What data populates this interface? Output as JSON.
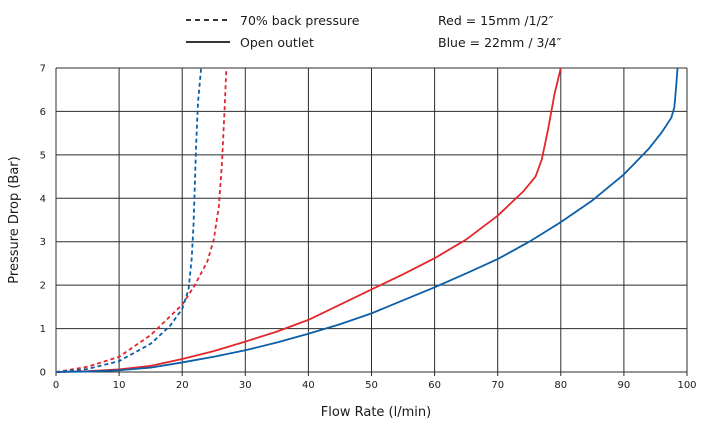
{
  "chart_data": {
    "type": "line",
    "xlabel": "Flow Rate (l/min)",
    "ylabel": "Pressure Drop (Bar)",
    "xlim": [
      0,
      100
    ],
    "ylim": [
      0,
      7
    ],
    "x_ticks": [
      0,
      10,
      20,
      30,
      40,
      50,
      60,
      70,
      80,
      90,
      100
    ],
    "y_ticks": [
      0,
      1,
      2,
      3,
      4,
      5,
      6,
      7
    ],
    "x_tick_labels": [
      "0",
      "10",
      "20",
      "30",
      "40",
      "50",
      "60",
      "70",
      "80",
      "90",
      "100"
    ],
    "y_tick_labels": [
      "0",
      "1",
      "2",
      "3",
      "4",
      "5",
      "6",
      "7"
    ],
    "grid": true,
    "legend": {
      "line_styles": [
        {
          "label": "70% back pressure",
          "style": "dashed"
        },
        {
          "label": "Open outlet",
          "style": "solid"
        }
      ],
      "color_key": [
        "Red = 15mm /1/2″",
        "Blue = 22mm / 3/4″"
      ]
    },
    "series": [
      {
        "color": "#e3262c",
        "style": "solid",
        "x": [
          0,
          5,
          10,
          15,
          20,
          25,
          30,
          35,
          40,
          45,
          50,
          55,
          60,
          65,
          70,
          74,
          76,
          77,
          78,
          79,
          80
        ],
        "y": [
          0,
          0.02,
          0.06,
          0.14,
          0.3,
          0.48,
          0.7,
          0.93,
          1.2,
          1.55,
          1.9,
          2.25,
          2.62,
          3.05,
          3.6,
          4.15,
          4.5,
          4.9,
          5.6,
          6.4,
          7.0
        ]
      },
      {
        "color": "#0b5ea8",
        "style": "solid",
        "x": [
          0,
          5,
          10,
          15,
          20,
          25,
          30,
          35,
          40,
          45,
          50,
          55,
          60,
          65,
          70,
          75,
          80,
          85,
          90,
          94,
          96,
          97.5,
          98,
          98.3,
          98.5
        ],
        "y": [
          0,
          0.01,
          0.04,
          0.1,
          0.22,
          0.35,
          0.5,
          0.68,
          0.88,
          1.1,
          1.35,
          1.65,
          1.95,
          2.27,
          2.6,
          3.0,
          3.45,
          3.95,
          4.55,
          5.15,
          5.52,
          5.85,
          6.1,
          6.6,
          7.0
        ]
      },
      {
        "color": "#e3262c",
        "style": "dashed",
        "x": [
          0,
          5,
          10,
          15,
          20,
          22,
          24,
          25,
          25.8,
          26.3,
          26.7,
          27
        ],
        "y": [
          0,
          0.12,
          0.35,
          0.85,
          1.55,
          2.0,
          2.55,
          3.05,
          3.8,
          4.8,
          6.0,
          7.0
        ]
      },
      {
        "color": "#0b5ea8",
        "style": "dashed",
        "x": [
          0,
          5,
          10,
          15,
          18,
          20,
          21,
          21.5,
          21.8,
          22,
          22.2,
          22.5,
          23
        ],
        "y": [
          0,
          0.07,
          0.25,
          0.65,
          1.05,
          1.45,
          1.9,
          2.6,
          3.4,
          4.3,
          5.2,
          6.2,
          7.0
        ]
      }
    ]
  }
}
